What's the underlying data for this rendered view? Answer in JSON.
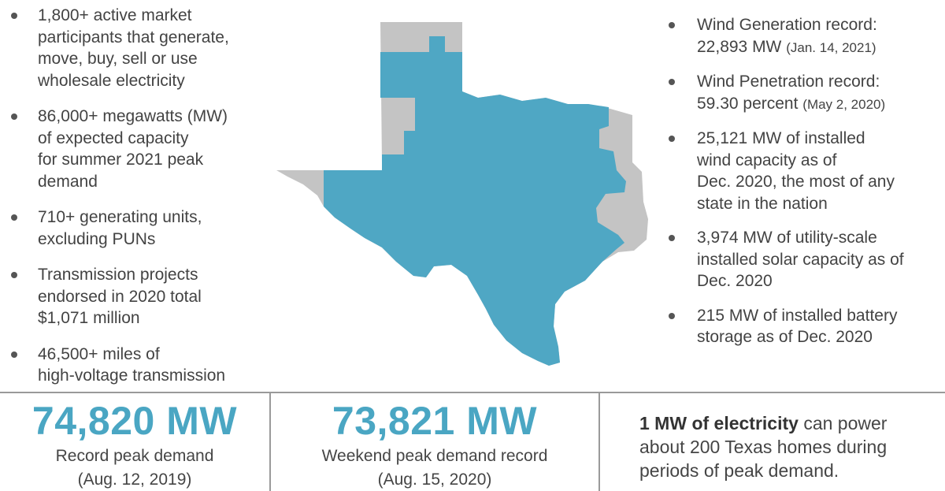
{
  "left_facts": [
    {
      "lines": [
        "1,800+ active market",
        "participants that generate,",
        "move, buy, sell or use",
        "wholesale electricity"
      ]
    },
    {
      "lines": [
        "86,000+ megawatts (MW)",
        "of expected capacity",
        "for summer 2021 peak",
        "demand"
      ]
    },
    {
      "lines": [
        "710+ generating units,",
        "excluding PUNs"
      ]
    },
    {
      "lines": [
        "Transmission projects",
        "endorsed in 2020 total",
        "$1,071 million"
      ]
    },
    {
      "lines": [
        "46,500+ miles of",
        "high-voltage transmission"
      ]
    }
  ],
  "right_facts": [
    {
      "line1": "Wind Generation record:",
      "line2_main": "22,893 MW",
      "line2_sub": "(Jan. 14, 2021)"
    },
    {
      "line1": "Wind Penetration record:",
      "line2_main": "59.30 percent",
      "line2_sub": "(May 2, 2020)"
    },
    {
      "lines": [
        "25,121 MW of installed",
        "wind capacity as of",
        "Dec. 2020, the most of any",
        "state in the nation"
      ]
    },
    {
      "lines": [
        "3,974 MW of utility-scale",
        "installed solar capacity as of",
        "Dec. 2020"
      ]
    },
    {
      "lines": [
        "215 MW of installed battery",
        "storage as of Dec. 2020"
      ]
    }
  ],
  "stats": {
    "record_peak": {
      "value": "74,820 MW",
      "label": "Record peak demand",
      "date": "(Aug. 12, 2019)"
    },
    "weekend_peak": {
      "value": "73,821 MW",
      "label": "Weekend peak demand record",
      "date": "(Aug. 15, 2020)"
    },
    "note": {
      "bold": "1 MW of electricity",
      "rest_1": " can power",
      "line2": "about 200 Texas homes during",
      "line3": "periods of peak demand."
    }
  },
  "colors": {
    "accent": "#4aa6c3",
    "map_ercot": "#4fa7c4",
    "map_other": "#c4c4c4",
    "text": "#444444"
  },
  "icons": {
    "bullet": "bullet-dot"
  }
}
